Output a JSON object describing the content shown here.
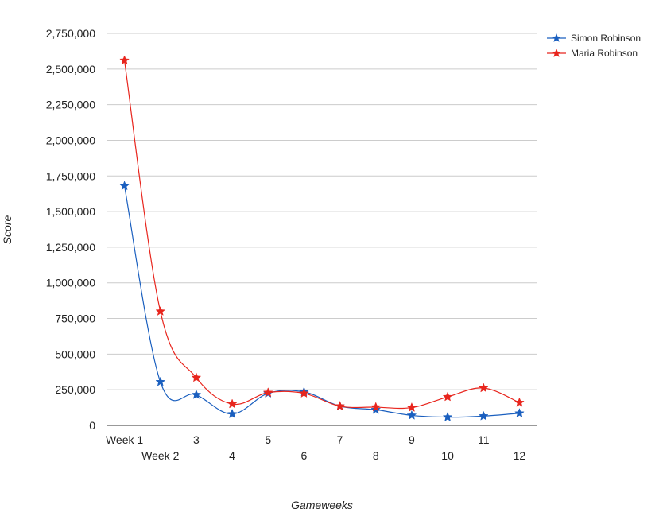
{
  "chart_data": {
    "type": "line",
    "title": "",
    "xlabel": "Gameweeks",
    "ylabel": "Score",
    "categories": [
      "Week 1",
      "Week 2",
      "3",
      "4",
      "5",
      "6",
      "7",
      "8",
      "9",
      "10",
      "11",
      "12"
    ],
    "yticks": [
      "0",
      "250,000",
      "500,000",
      "750,000",
      "1,000,000",
      "1,250,000",
      "1,500,000",
      "1,750,000",
      "2,000,000",
      "2,250,000",
      "2,500,000",
      "2,750,000"
    ],
    "ylim": [
      0,
      2750000
    ],
    "grid": true,
    "legend_position": "top-right",
    "smooth": true,
    "marker": "star",
    "series": [
      {
        "name": "Simon Robinson",
        "color": "#1a5fbf",
        "values": [
          1680000,
          305000,
          215000,
          80000,
          225000,
          235000,
          135000,
          110000,
          70000,
          58000,
          65000,
          85000
        ]
      },
      {
        "name": "Maria Robinson",
        "color": "#e8251d",
        "values": [
          2560000,
          800000,
          335000,
          150000,
          230000,
          225000,
          135000,
          128000,
          125000,
          200000,
          262000,
          160000
        ]
      }
    ]
  }
}
